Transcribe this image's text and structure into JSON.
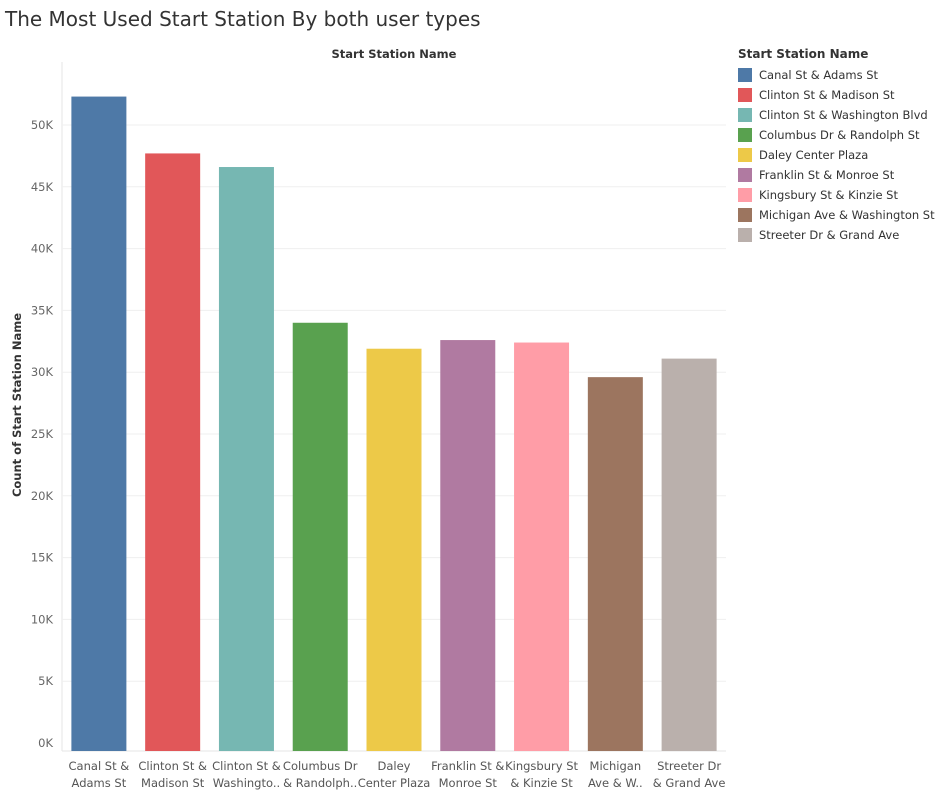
{
  "chart_data": {
    "type": "bar",
    "title": "The Most Used Start Station By both user types",
    "top_header": "Start Station Name",
    "ylabel": "Count of Start Station Name",
    "ylim": [
      0,
      54000
    ],
    "yticks": [
      0,
      5000,
      10000,
      15000,
      20000,
      25000,
      30000,
      35000,
      40000,
      45000,
      50000
    ],
    "ytick_labels": [
      "0K",
      "5K",
      "10K",
      "15K",
      "20K",
      "25K",
      "30K",
      "35K",
      "40K",
      "45K",
      "50K"
    ],
    "grid": true,
    "legend_placement": "right",
    "legend_title": "Start Station Name",
    "categories": [
      "Canal St & Adams St",
      "Clinton St & Madison St",
      "Clinton St & Washington Blvd",
      "Columbus Dr & Randolph St",
      "Daley Center Plaza",
      "Franklin St & Monroe St",
      "Kingsbury St & Kinzie St",
      "Michigan Ave & Washington St",
      "Streeter Dr & Grand Ave"
    ],
    "category_tick_labels": [
      [
        "Canal St &",
        "Adams St"
      ],
      [
        "Clinton St &",
        "Madison St"
      ],
      [
        "Clinton St &",
        "Washingto.."
      ],
      [
        "Columbus Dr",
        "& Randolph.."
      ],
      [
        "Daley",
        "Center Plaza"
      ],
      [
        "Franklin St &",
        "Monroe St"
      ],
      [
        "Kingsbury St",
        "& Kinzie St"
      ],
      [
        "Michigan",
        "Ave & W.."
      ],
      [
        "Streeter Dr",
        "& Grand Ave"
      ]
    ],
    "values": [
      52300,
      47700,
      46600,
      34000,
      31900,
      32600,
      32400,
      29600,
      31100
    ],
    "colors": [
      "#4e79a7",
      "#e15759",
      "#76b7b2",
      "#59a14f",
      "#edc948",
      "#b07aa1",
      "#ff9da7",
      "#9c755f",
      "#bab0ac"
    ]
  }
}
